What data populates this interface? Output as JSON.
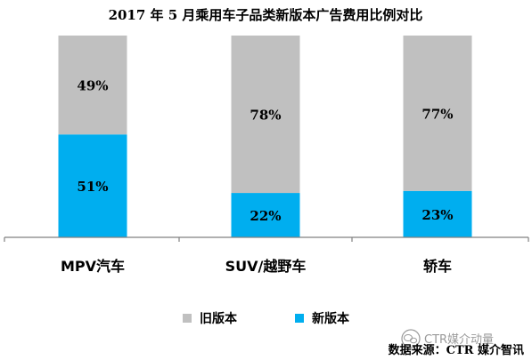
{
  "chart_data": {
    "type": "bar",
    "stacked": true,
    "title": "2017 年 5 月乘用车子品类新版本广告费用比例对比",
    "categories": [
      "MPV汽车",
      "SUV/越野车",
      "轿车"
    ],
    "series": [
      {
        "name": "新版本",
        "color": "#00AEEF",
        "values": [
          51,
          22,
          23
        ],
        "labels": [
          "51%",
          "22%",
          "23%"
        ]
      },
      {
        "name": "旧版本",
        "color": "#C0C0C0",
        "values": [
          49,
          78,
          77
        ],
        "labels": [
          "49%",
          "78%",
          "77%"
        ]
      }
    ],
    "ylim": [
      0,
      100
    ],
    "legend_position": "bottom",
    "legend_order": [
      "旧版本",
      "新版本"
    ],
    "grid": false
  },
  "source_text": "数据来源：CTR 媒介智讯",
  "watermark": {
    "text": "CTR媒介动量",
    "icon": "wechat-icon"
  }
}
